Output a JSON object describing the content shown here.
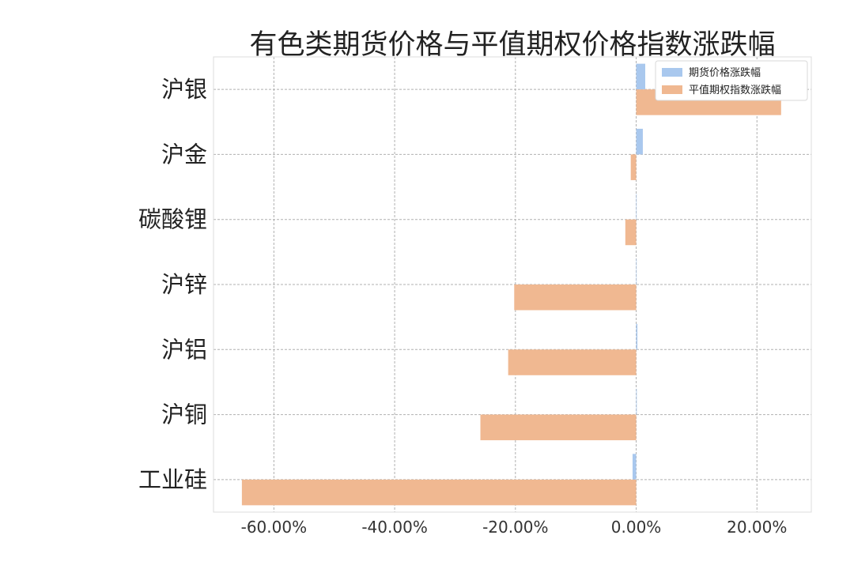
{
  "chart_data": {
    "type": "bar",
    "orientation": "horizontal",
    "title": "有色类期货价格与平值期权价格指数涨跌幅",
    "categories": [
      "沪银",
      "沪金",
      "碳酸锂",
      "沪锌",
      "沪铝",
      "沪铜",
      "工业硅"
    ],
    "series": [
      {
        "name": "期货价格涨跌幅",
        "color": "#a9c8ee",
        "values": [
          1.5,
          1.1,
          0.0,
          0.0,
          0.2,
          0.1,
          -0.6
        ]
      },
      {
        "name": "平值期权指数涨跌幅",
        "color": "#f0b891",
        "values": [
          24.0,
          -0.9,
          -1.8,
          -20.2,
          -21.2,
          -25.8,
          -65.3
        ]
      }
    ],
    "xlim": [
      -70,
      29
    ],
    "xticks": [
      -60,
      -40,
      -20,
      0,
      20
    ],
    "xtick_labels": [
      "-60.00%",
      "-40.00%",
      "-20.00%",
      "0.00%",
      "20.00%"
    ],
    "grid": true,
    "legend_position": "top-right"
  }
}
